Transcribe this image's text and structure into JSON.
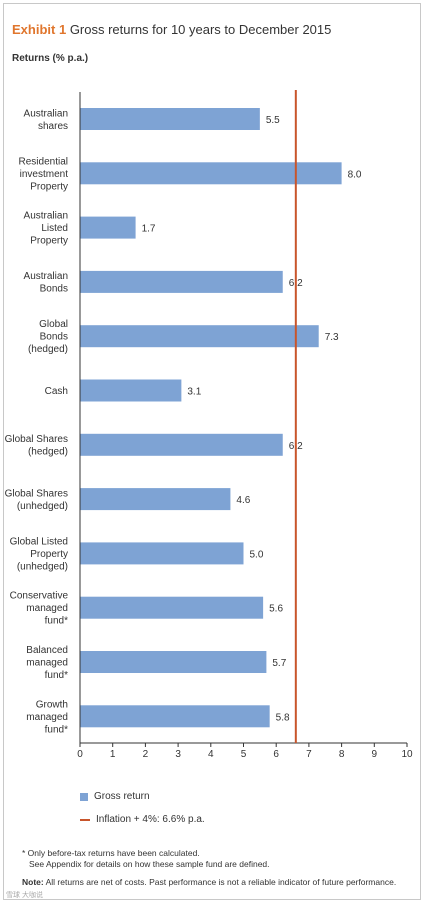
{
  "header": {
    "exhibit": "Exhibit 1",
    "title": "Gross returns for 10 years to December 2015",
    "ylabel": "Returns (% p.a.)"
  },
  "chart_data": {
    "type": "bar",
    "orientation": "horizontal",
    "categories": [
      [
        "Australian",
        "shares"
      ],
      [
        "Residential",
        "investment",
        "Property"
      ],
      [
        "Australian",
        "Listed",
        "Property"
      ],
      [
        "Australian",
        "Bonds"
      ],
      [
        "Global",
        "Bonds",
        "(hedged)"
      ],
      [
        "Cash"
      ],
      [
        "Global Shares",
        "(hedged)"
      ],
      [
        "Global Shares",
        "(unhedged)"
      ],
      [
        "Global Listed",
        "Property",
        "(unhedged)"
      ],
      [
        "Conservative",
        "managed",
        "fund*"
      ],
      [
        "Balanced",
        "managed",
        "fund*"
      ],
      [
        "Growth",
        "managed",
        "fund*"
      ]
    ],
    "series": [
      {
        "name": "Gross return",
        "color": "#7ea3d4",
        "values": [
          5.5,
          8.0,
          1.7,
          6.2,
          7.3,
          3.1,
          6.2,
          4.6,
          5.0,
          5.6,
          5.7,
          5.8
        ],
        "labels": [
          "5.5",
          "8.0",
          "1.7",
          "6.2",
          "7.3",
          "3.1",
          "6.2",
          "4.6",
          "5.0",
          "5.6",
          "5.7",
          "5.8"
        ]
      }
    ],
    "reference_line": {
      "name": "Inflation + 4%:  6.6% p.a.",
      "value": 6.6,
      "color": "#c8552b"
    },
    "xlim": [
      0,
      10
    ],
    "xticks": [
      "0",
      "1",
      "2",
      "3",
      "4",
      "5",
      "6",
      "7",
      "8",
      "9",
      "10"
    ],
    "grid": false,
    "legend": "bottom-left"
  },
  "footnotes": {
    "line1": "* Only before-tax returns have been calculated.",
    "line2": "See Appendix for details on how these sample fund are defined.",
    "note_label": "Note:",
    "note_text": " All returns are net of costs. Past performance is not a reliable indicator of future performance."
  },
  "watermark": "雪球 大咖说"
}
